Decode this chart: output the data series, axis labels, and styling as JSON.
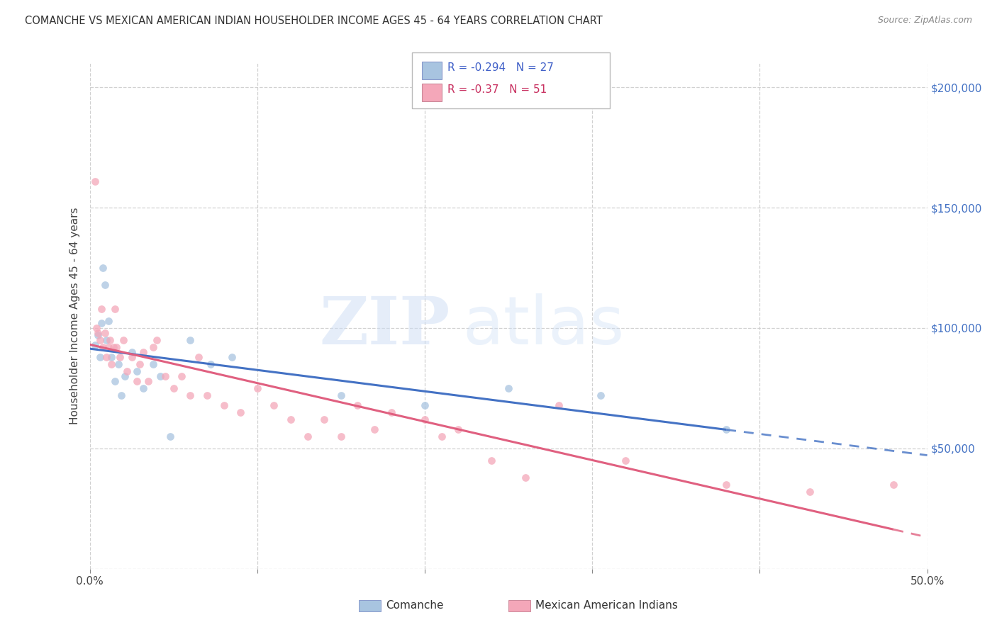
{
  "title": "COMANCHE VS MEXICAN AMERICAN INDIAN HOUSEHOLDER INCOME AGES 45 - 64 YEARS CORRELATION CHART",
  "source": "Source: ZipAtlas.com",
  "ylabel": "Householder Income Ages 45 - 64 years",
  "xlim": [
    0.0,
    0.5
  ],
  "ylim": [
    0,
    210000
  ],
  "xticks": [
    0.0,
    0.1,
    0.2,
    0.3,
    0.4,
    0.5
  ],
  "xtick_labels": [
    "0.0%",
    "",
    "",
    "",
    "",
    "50.0%"
  ],
  "yticks": [
    0,
    50000,
    100000,
    150000,
    200000
  ],
  "ytick_labels": [
    "",
    "$50,000",
    "$100,000",
    "$150,000",
    "$200,000"
  ],
  "comanche_color": "#a8c4e0",
  "mexican_color": "#f4a7b9",
  "comanche_line_color": "#4472c4",
  "mexican_line_color": "#e06080",
  "R_comanche": -0.294,
  "N_comanche": 27,
  "R_mexican": -0.37,
  "N_mexican": 51,
  "comanche_x": [
    0.003,
    0.005,
    0.006,
    0.007,
    0.008,
    0.009,
    0.01,
    0.011,
    0.013,
    0.015,
    0.017,
    0.019,
    0.021,
    0.025,
    0.028,
    0.032,
    0.038,
    0.042,
    0.048,
    0.06,
    0.072,
    0.085,
    0.15,
    0.2,
    0.25,
    0.305,
    0.38
  ],
  "comanche_y": [
    93000,
    97000,
    88000,
    102000,
    125000,
    118000,
    95000,
    103000,
    88000,
    78000,
    85000,
    72000,
    80000,
    90000,
    82000,
    75000,
    85000,
    80000,
    55000,
    95000,
    85000,
    88000,
    72000,
    68000,
    75000,
    72000,
    58000
  ],
  "mexican_x": [
    0.003,
    0.004,
    0.005,
    0.006,
    0.007,
    0.008,
    0.009,
    0.01,
    0.011,
    0.012,
    0.013,
    0.014,
    0.015,
    0.016,
    0.018,
    0.02,
    0.022,
    0.025,
    0.028,
    0.03,
    0.032,
    0.035,
    0.038,
    0.04,
    0.045,
    0.05,
    0.055,
    0.06,
    0.065,
    0.07,
    0.08,
    0.09,
    0.1,
    0.11,
    0.12,
    0.13,
    0.14,
    0.15,
    0.16,
    0.17,
    0.18,
    0.2,
    0.21,
    0.22,
    0.24,
    0.26,
    0.28,
    0.32,
    0.38,
    0.43,
    0.48
  ],
  "mexican_y": [
    161000,
    100000,
    98000,
    95000,
    108000,
    92000,
    98000,
    88000,
    92000,
    95000,
    85000,
    92000,
    108000,
    92000,
    88000,
    95000,
    82000,
    88000,
    78000,
    85000,
    90000,
    78000,
    92000,
    95000,
    80000,
    75000,
    80000,
    72000,
    88000,
    72000,
    68000,
    65000,
    75000,
    68000,
    62000,
    55000,
    62000,
    55000,
    68000,
    58000,
    65000,
    62000,
    55000,
    58000,
    45000,
    38000,
    68000,
    45000,
    35000,
    32000,
    35000
  ]
}
